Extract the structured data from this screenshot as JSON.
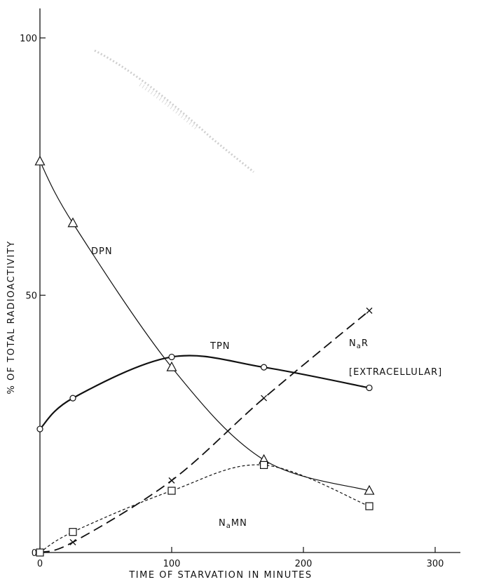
{
  "chart_data": {
    "type": "line",
    "title": "",
    "xlabel": "TIME OF STARVATION IN MINUTES",
    "ylabel": "% OF TOTAL RADIOACTIVITY",
    "xlim": [
      0,
      320
    ],
    "ylim": [
      0,
      105
    ],
    "xticks": [
      0,
      100,
      200,
      300
    ],
    "xtick_labels": [
      "0",
      "100",
      "200",
      "300"
    ],
    "yticks": [
      0,
      50,
      100
    ],
    "ytick_labels": [
      "0",
      "50",
      "100"
    ],
    "grid": false,
    "legend": "none (series labeled directly on lines)",
    "series": [
      {
        "name": "DPN",
        "marker": "triangle",
        "line_style": "solid",
        "points": [
          [
            0,
            76
          ],
          [
            25,
            64
          ],
          [
            100,
            36
          ],
          [
            170,
            18
          ],
          [
            250,
            12
          ]
        ]
      },
      {
        "name": "TPN",
        "marker": "circle",
        "line_style": "solid-thick",
        "points": [
          [
            0,
            24
          ],
          [
            25,
            30
          ],
          [
            100,
            38
          ],
          [
            170,
            36
          ],
          [
            250,
            32
          ]
        ]
      },
      {
        "name": "NaR",
        "annotation": "[EXTRACELLULAR]",
        "marker": "x",
        "line_style": "long-dash",
        "points": [
          [
            0,
            0
          ],
          [
            25,
            2
          ],
          [
            100,
            14
          ],
          [
            170,
            30
          ],
          [
            250,
            47
          ]
        ]
      },
      {
        "name": "NaMN",
        "marker": "square",
        "line_style": "short-dash",
        "points": [
          [
            0,
            0
          ],
          [
            25,
            4
          ],
          [
            100,
            12
          ],
          [
            170,
            17
          ],
          [
            250,
            9
          ]
        ]
      }
    ]
  }
}
